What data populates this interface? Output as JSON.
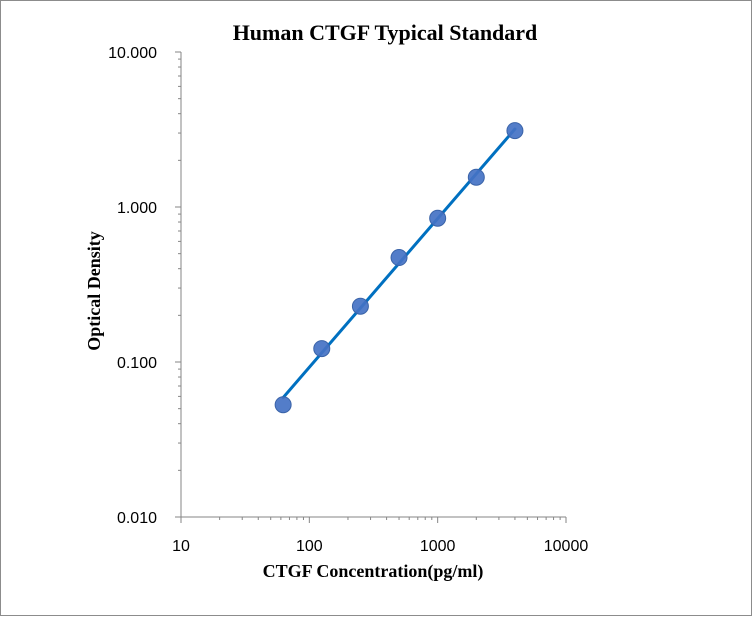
{
  "chart_data": {
    "type": "scatter",
    "title": "Human CTGF Typical Standard",
    "xlabel": "CTGF Concentration(pg/ml)",
    "ylabel": "Optical Density",
    "x_scale": "log",
    "y_scale": "log",
    "xlim": [
      10,
      10000
    ],
    "ylim": [
      0.01,
      10
    ],
    "x_ticks": [
      10,
      100,
      1000,
      10000
    ],
    "x_tick_labels": [
      "10",
      "100",
      "1000",
      "10000"
    ],
    "y_ticks": [
      0.01,
      0.1,
      1,
      10
    ],
    "y_tick_labels": [
      "0.010",
      "0.100",
      "1.000",
      "10.000"
    ],
    "grid": false,
    "legend": "none",
    "series": [
      {
        "x": [
          62.5,
          125,
          250,
          500,
          1000,
          2000,
          4000
        ],
        "y": [
          0.053,
          0.122,
          0.229,
          0.472,
          0.846,
          1.556,
          3.112
        ],
        "color": "#4472c4",
        "trendline": "power",
        "trendline_color": "#0070c0"
      }
    ]
  }
}
